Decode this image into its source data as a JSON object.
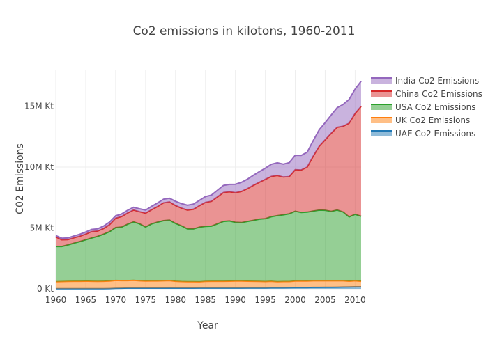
{
  "chart_data": {
    "type": "area",
    "stacked": true,
    "title": "Co2 emissions in kilotons, 1960-2011",
    "xlabel": "Year",
    "ylabel": "C02 Emissions",
    "xlim": [
      1960,
      2011
    ],
    "ylim": [
      0,
      18000000
    ],
    "grid": true,
    "legend_position": "top-right",
    "x_ticks": [
      {
        "value": 1960,
        "label": "1960"
      },
      {
        "value": 1965,
        "label": "1965"
      },
      {
        "value": 1970,
        "label": "1970"
      },
      {
        "value": 1975,
        "label": "1975"
      },
      {
        "value": 1980,
        "label": "1980"
      },
      {
        "value": 1985,
        "label": "1985"
      },
      {
        "value": 1990,
        "label": "1990"
      },
      {
        "value": 1995,
        "label": "1995"
      },
      {
        "value": 2000,
        "label": "2000"
      },
      {
        "value": 2005,
        "label": "2005"
      },
      {
        "value": 2010,
        "label": "2010"
      }
    ],
    "y_ticks": [
      {
        "value": 0,
        "label": "0 Kt"
      },
      {
        "value": 5000000,
        "label": "5M Kt"
      },
      {
        "value": 10000000,
        "label": "10M Kt"
      },
      {
        "value": 15000000,
        "label": "15M Kt"
      }
    ],
    "x": [
      1960,
      1961,
      1962,
      1963,
      1964,
      1965,
      1966,
      1967,
      1968,
      1969,
      1970,
      1971,
      1972,
      1973,
      1974,
      1975,
      1976,
      1977,
      1978,
      1979,
      1980,
      1981,
      1982,
      1983,
      1984,
      1985,
      1986,
      1987,
      1988,
      1989,
      1990,
      1991,
      1992,
      1993,
      1994,
      1995,
      1996,
      1997,
      1998,
      1999,
      2000,
      2001,
      2002,
      2003,
      2004,
      2005,
      2006,
      2007,
      2008,
      2009,
      2010,
      2011
    ],
    "series": [
      {
        "name": "UAE Co2 Emissions",
        "color": "#1f77b4",
        "values": [
          10000,
          10000,
          10000,
          10000,
          10000,
          10000,
          10000,
          10000,
          10000,
          20000,
          40000,
          50000,
          60000,
          60000,
          60000,
          60000,
          60000,
          60000,
          60000,
          70000,
          60000,
          60000,
          60000,
          60000,
          70000,
          70000,
          70000,
          70000,
          70000,
          70000,
          70000,
          70000,
          80000,
          80000,
          80000,
          80000,
          90000,
          90000,
          90000,
          100000,
          110000,
          110000,
          110000,
          120000,
          120000,
          130000,
          130000,
          140000,
          150000,
          160000,
          170000,
          170000
        ]
      },
      {
        "name": "UK Co2 Emissions",
        "color": "#ff7f0e",
        "values": [
          580000,
          590000,
          600000,
          610000,
          610000,
          620000,
          610000,
          600000,
          610000,
          620000,
          650000,
          630000,
          620000,
          640000,
          600000,
          580000,
          590000,
          590000,
          600000,
          610000,
          560000,
          540000,
          530000,
          530000,
          510000,
          540000,
          550000,
          550000,
          550000,
          560000,
          570000,
          570000,
          550000,
          540000,
          530000,
          520000,
          530000,
          500000,
          510000,
          500000,
          530000,
          540000,
          530000,
          540000,
          540000,
          530000,
          530000,
          520000,
          510000,
          470000,
          490000,
          450000
        ]
      },
      {
        "name": "USA Co2 Emissions",
        "color": "#2ca02c",
        "values": [
          2890000,
          2880000,
          2990000,
          3130000,
          3260000,
          3390000,
          3560000,
          3700000,
          3870000,
          4060000,
          4340000,
          4390000,
          4630000,
          4800000,
          4680000,
          4440000,
          4680000,
          4830000,
          4940000,
          4960000,
          4750000,
          4570000,
          4330000,
          4330000,
          4480000,
          4520000,
          4530000,
          4720000,
          4920000,
          4950000,
          4820000,
          4800000,
          4900000,
          5000000,
          5110000,
          5160000,
          5300000,
          5420000,
          5480000,
          5560000,
          5730000,
          5620000,
          5660000,
          5730000,
          5800000,
          5790000,
          5700000,
          5810000,
          5650000,
          5280000,
          5460000,
          5340000
        ]
      },
      {
        "name": "China Co2 Emissions",
        "color": "#d62728",
        "values": [
          780000,
          550000,
          440000,
          440000,
          440000,
          480000,
          530000,
          440000,
          470000,
          580000,
          770000,
          870000,
          920000,
          970000,
          990000,
          1130000,
          1160000,
          1280000,
          1460000,
          1490000,
          1470000,
          1450000,
          1550000,
          1620000,
          1770000,
          1970000,
          2040000,
          2210000,
          2370000,
          2390000,
          2440000,
          2560000,
          2690000,
          2880000,
          3030000,
          3230000,
          3310000,
          3300000,
          3100000,
          3060000,
          3410000,
          3490000,
          3700000,
          4500000,
          5250000,
          5790000,
          6410000,
          6790000,
          7040000,
          7690000,
          8280000,
          9020000
        ]
      },
      {
        "name": "India Co2 Emissions",
        "color": "#9467bd",
        "values": [
          120000,
          130000,
          140000,
          150000,
          160000,
          170000,
          170000,
          180000,
          200000,
          210000,
          200000,
          210000,
          220000,
          230000,
          240000,
          260000,
          280000,
          290000,
          300000,
          310000,
          350000,
          380000,
          400000,
          420000,
          440000,
          480000,
          510000,
          540000,
          580000,
          610000,
          690000,
          740000,
          780000,
          820000,
          870000,
          920000,
          1000000,
          1040000,
          1060000,
          1140000,
          1190000,
          1200000,
          1230000,
          1280000,
          1350000,
          1410000,
          1500000,
          1610000,
          1790000,
          1960000,
          2000000,
          2070000
        ]
      }
    ]
  }
}
